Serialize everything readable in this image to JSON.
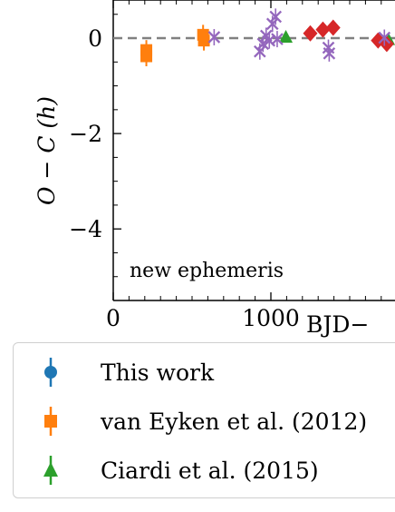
{
  "colors": {
    "this_work": "#1f77b4",
    "van_eyken": "#ff7f0e",
    "ciardi": "#2ca02c",
    "diamond_series": "#d62728",
    "cross_series": "#9467bd",
    "reference_line": "#808080"
  },
  "chart_data": {
    "type": "scatter",
    "ylabel": "O − C (h)",
    "xlabel_partial": "BJD−",
    "annotation": "new ephemeris",
    "xlim": [
      0,
      1750
    ],
    "ylim": [
      -5.5,
      0.8
    ],
    "xticks": [
      0,
      1000
    ],
    "xtick_labels": [
      "0",
      "1000"
    ],
    "yticks": [
      0,
      -2,
      -4
    ],
    "ytick_labels": [
      "0",
      "−2",
      "−4"
    ],
    "reference_line": {
      "y": 0,
      "style": "dashed"
    },
    "series": [
      {
        "name": "This work",
        "marker": "circle",
        "color": "#1f77b4",
        "points": []
      },
      {
        "name": "van Eyken et al. (2012)",
        "marker": "square",
        "color": "#ff7f0e",
        "points": [
          {
            "x": 210,
            "y": -0.25
          },
          {
            "x": 210,
            "y": -0.38
          },
          {
            "x": 570,
            "y": 0.07
          },
          {
            "x": 575,
            "y": -0.05
          }
        ]
      },
      {
        "name": "Ciardi et al. (2015)",
        "marker": "triangle",
        "color": "#2ca02c",
        "points": [
          {
            "x": 1095,
            "y": 0.02
          },
          {
            "x": 1745,
            "y": -0.03
          }
        ]
      },
      {
        "marker": "diamond",
        "color": "#d62728",
        "points": [
          {
            "x": 1250,
            "y": 0.1
          },
          {
            "x": 1330,
            "y": 0.18
          },
          {
            "x": 1395,
            "y": 0.22
          },
          {
            "x": 1680,
            "y": -0.05
          },
          {
            "x": 1735,
            "y": -0.12
          }
        ]
      },
      {
        "marker": "x",
        "color": "#9467bd",
        "points": [
          {
            "x": 640,
            "y": 0.02
          },
          {
            "x": 930,
            "y": -0.28
          },
          {
            "x": 950,
            "y": -0.12
          },
          {
            "x": 970,
            "y": 0.05
          },
          {
            "x": 990,
            "y": -0.05
          },
          {
            "x": 1010,
            "y": 0.3
          },
          {
            "x": 1030,
            "y": 0.45
          },
          {
            "x": 1040,
            "y": -0.02
          },
          {
            "x": 1365,
            "y": -0.2
          },
          {
            "x": 1370,
            "y": -0.32
          },
          {
            "x": 1720,
            "y": 0.01
          }
        ]
      }
    ],
    "legend": {
      "placement": "below",
      "entries": [
        "This work",
        "van Eyken et al. (2012)",
        "Ciardi et al. (2015)"
      ]
    }
  }
}
